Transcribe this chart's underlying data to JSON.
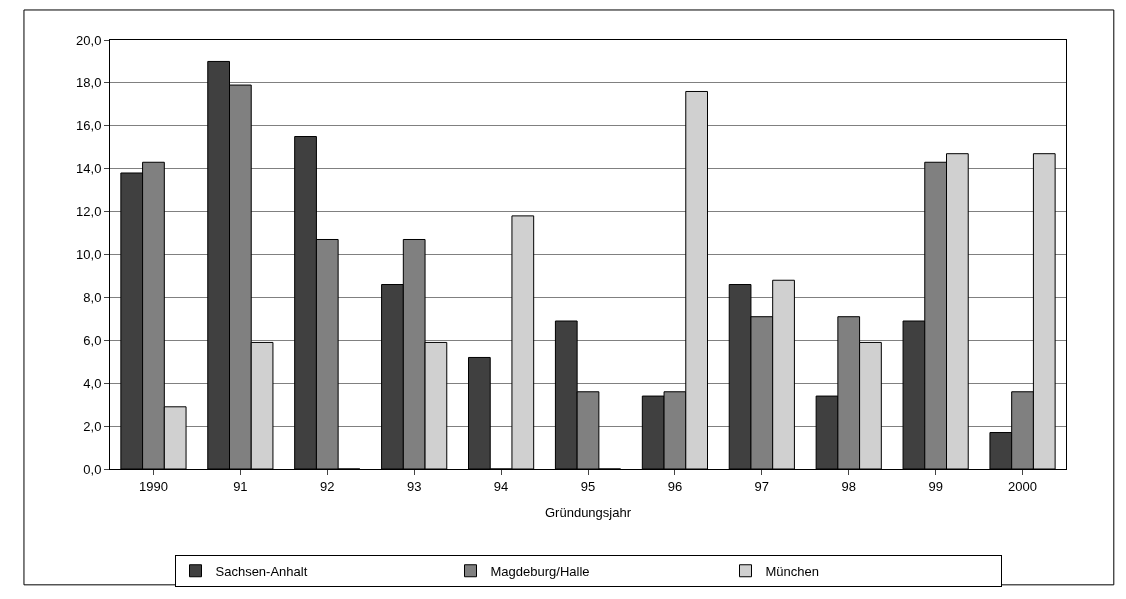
{
  "chart_data": {
    "type": "bar",
    "xlabel": "Gründungsjahr",
    "categories": [
      "1990",
      "91",
      "92",
      "93",
      "94",
      "95",
      "96",
      "97",
      "98",
      "99",
      "2000"
    ],
    "series": [
      {
        "name": "Sachsen-Anhalt",
        "color": "#404040",
        "values": [
          13.8,
          19.0,
          15.5,
          8.6,
          5.2,
          6.9,
          3.4,
          8.6,
          3.4,
          6.9,
          1.7
        ]
      },
      {
        "name": "Magdeburg/Halle",
        "color": "#808080",
        "values": [
          14.3,
          17.9,
          10.7,
          10.7,
          0,
          3.6,
          3.6,
          7.1,
          7.1,
          14.3,
          3.6
        ]
      },
      {
        "name": "München",
        "color": "#d0d0d0",
        "values": [
          2.9,
          5.9,
          0,
          5.9,
          11.8,
          0,
          17.6,
          8.8,
          5.9,
          14.7,
          14.7
        ]
      }
    ],
    "ylim": [
      0,
      20
    ],
    "yticks": [
      {
        "value": 0,
        "label": "0,0"
      },
      {
        "value": 2,
        "label": "2,0"
      },
      {
        "value": 4,
        "label": "4,0"
      },
      {
        "value": 6,
        "label": "6,0"
      },
      {
        "value": 8,
        "label": "8,0"
      },
      {
        "value": 10,
        "label": "10,0"
      },
      {
        "value": 12,
        "label": "12,0"
      },
      {
        "value": 14,
        "label": "14,0"
      },
      {
        "value": 16,
        "label": "16,0"
      },
      {
        "value": 18,
        "label": "18,0"
      },
      {
        "value": 20,
        "label": "20,0"
      }
    ],
    "grid": "y",
    "legend": "bottom"
  }
}
